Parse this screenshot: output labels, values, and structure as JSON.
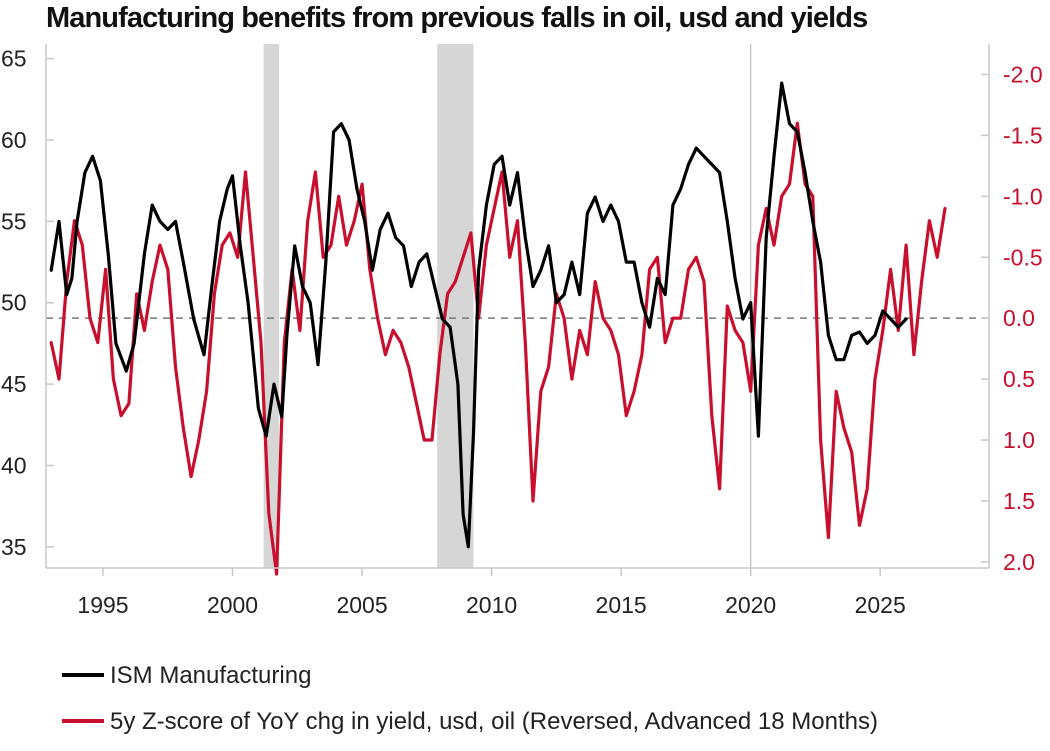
{
  "chart_data": {
    "type": "line",
    "title": "Manufacturing benefits from previous falls in oil, usd and yields",
    "x_range": [
      1992.8,
      2029.2
    ],
    "x_ticks": [
      1995,
      2000,
      2005,
      2010,
      2015,
      2020,
      2025
    ],
    "y_left": {
      "ylim": [
        33.7,
        65.9
      ],
      "ticks": [
        65,
        60,
        55,
        50,
        45,
        40,
        35
      ]
    },
    "y_right": {
      "ylim": [
        -2.25,
        2.05
      ],
      "reversed": true,
      "ticks": [
        -2.0,
        -1.5,
        -1.0,
        -0.5,
        0.0,
        0.5,
        1.0,
        1.5,
        2.0
      ],
      "tick_labels": [
        "-2.0",
        "-1.5",
        "-1.0",
        "-0.5",
        "0.0",
        "0.5",
        "1.0",
        "1.5",
        "2.0"
      ]
    },
    "reference_line": {
      "axis": "y_right",
      "value": 0.0,
      "style": "dashed"
    },
    "recessions": [
      [
        2001.2,
        2001.8
      ],
      [
        2007.9,
        2009.3
      ]
    ],
    "vertical_markers": [
      2020.0
    ],
    "series": [
      {
        "name": "ISM Manufacturing",
        "axis": "left",
        "color": "#000000",
        "x": [
          1993.0,
          1993.3,
          1993.6,
          1993.8,
          1994.0,
          1994.3,
          1994.6,
          1994.9,
          1995.2,
          1995.5,
          1995.9,
          1996.2,
          1996.6,
          1996.9,
          1997.2,
          1997.5,
          1997.8,
          1998.1,
          1998.5,
          1998.9,
          1999.2,
          1999.5,
          1999.8,
          2000.0,
          2000.3,
          2000.6,
          2001.0,
          2001.3,
          2001.6,
          2001.9,
          2002.1,
          2002.4,
          2002.7,
          2003.0,
          2003.3,
          2003.6,
          2003.9,
          2004.2,
          2004.5,
          2004.8,
          2005.1,
          2005.4,
          2005.7,
          2006.0,
          2006.3,
          2006.6,
          2006.9,
          2007.2,
          2007.5,
          2007.8,
          2008.1,
          2008.4,
          2008.7,
          2008.9,
          2009.1,
          2009.3,
          2009.5,
          2009.8,
          2010.1,
          2010.4,
          2010.7,
          2011.0,
          2011.3,
          2011.6,
          2011.9,
          2012.2,
          2012.5,
          2012.8,
          2013.1,
          2013.4,
          2013.7,
          2014.0,
          2014.3,
          2014.6,
          2014.9,
          2015.2,
          2015.5,
          2015.8,
          2016.1,
          2016.4,
          2016.7,
          2017.0,
          2017.3,
          2017.6,
          2017.9,
          2018.2,
          2018.5,
          2018.8,
          2019.1,
          2019.4,
          2019.7,
          2020.0,
          2020.3,
          2020.6,
          2020.9,
          2021.2,
          2021.5,
          2021.8,
          2022.1,
          2022.4,
          2022.7,
          2023.0,
          2023.3,
          2023.6,
          2023.9,
          2024.2,
          2024.5,
          2024.8,
          2025.1,
          2025.4,
          2025.7,
          2026.0
        ],
        "values": [
          52.0,
          55.0,
          50.5,
          51.5,
          55.0,
          58.0,
          59.0,
          57.5,
          53.0,
          47.5,
          45.8,
          47.5,
          53.0,
          56.0,
          55.0,
          54.5,
          55.0,
          52.5,
          49.0,
          46.8,
          51.0,
          55.0,
          57.0,
          57.8,
          53.5,
          50.0,
          43.5,
          41.8,
          45.0,
          43.0,
          48.0,
          53.5,
          51.0,
          50.0,
          46.2,
          52.5,
          60.5,
          61.0,
          60.0,
          57.0,
          55.0,
          52.0,
          54.5,
          55.5,
          54.0,
          53.5,
          51.0,
          52.5,
          53.0,
          51.0,
          49.0,
          48.5,
          45.0,
          37.0,
          35.0,
          42.0,
          52.0,
          56.0,
          58.5,
          59.0,
          56.0,
          58.0,
          54.0,
          51.0,
          52.0,
          53.5,
          50.0,
          50.5,
          52.5,
          50.5,
          55.5,
          56.5,
          55.0,
          56.0,
          55.0,
          52.5,
          52.5,
          50.0,
          48.5,
          51.5,
          50.5,
          56.0,
          57.0,
          58.5,
          59.5,
          59.0,
          58.5,
          58.0,
          55.0,
          51.5,
          49.0,
          50.0,
          41.8,
          54.0,
          59.0,
          63.5,
          61.0,
          60.5,
          58.0,
          55.0,
          52.5,
          48.0,
          46.5,
          46.5,
          48.0,
          48.2,
          47.5,
          48.0,
          49.5,
          49.0,
          48.5,
          49.0
        ]
      },
      {
        "name": "5y Z-score of YoY chg in yield, usd, oil (Reversed, Advanced 18 Months)",
        "axis": "right",
        "color": "#c8102e",
        "x": [
          1993.0,
          1993.3,
          1993.6,
          1993.9,
          1994.2,
          1994.5,
          1994.8,
          1995.1,
          1995.4,
          1995.7,
          1996.0,
          1996.3,
          1996.6,
          1996.9,
          1997.2,
          1997.5,
          1997.8,
          1998.1,
          1998.4,
          1998.7,
          1999.0,
          1999.3,
          1999.6,
          1999.9,
          2000.2,
          2000.5,
          2000.8,
          2001.1,
          2001.4,
          2001.7,
          2002.0,
          2002.3,
          2002.6,
          2002.9,
          2003.2,
          2003.5,
          2003.8,
          2004.1,
          2004.4,
          2004.7,
          2005.0,
          2005.3,
          2005.6,
          2005.9,
          2006.2,
          2006.5,
          2006.8,
          2007.1,
          2007.4,
          2007.7,
          2008.0,
          2008.3,
          2008.6,
          2008.9,
          2009.2,
          2009.5,
          2009.8,
          2010.1,
          2010.4,
          2010.7,
          2011.0,
          2011.3,
          2011.6,
          2011.9,
          2012.2,
          2012.5,
          2012.8,
          2013.1,
          2013.4,
          2013.7,
          2014.0,
          2014.3,
          2014.6,
          2014.9,
          2015.2,
          2015.5,
          2015.8,
          2016.1,
          2016.4,
          2016.7,
          2017.0,
          2017.3,
          2017.6,
          2017.9,
          2018.2,
          2018.5,
          2018.8,
          2019.1,
          2019.4,
          2019.7,
          2020.0,
          2020.3,
          2020.6,
          2020.9,
          2021.2,
          2021.5,
          2021.8,
          2022.1,
          2022.4,
          2022.7,
          2023.0,
          2023.3,
          2023.6,
          2023.9,
          2024.2,
          2024.5,
          2024.8,
          2025.1,
          2025.4,
          2025.7,
          2026.0,
          2026.3,
          2026.6,
          2026.9,
          2027.2,
          2027.5
        ],
        "values": [
          0.2,
          0.5,
          -0.3,
          -0.8,
          -0.6,
          0.0,
          0.2,
          -0.4,
          0.5,
          0.8,
          0.7,
          -0.2,
          0.1,
          -0.3,
          -0.6,
          -0.4,
          0.4,
          0.9,
          1.3,
          1.0,
          0.6,
          -0.2,
          -0.6,
          -0.7,
          -0.5,
          -1.2,
          -0.5,
          0.2,
          1.6,
          2.1,
          0.2,
          -0.4,
          0.1,
          -0.8,
          -1.2,
          -0.5,
          -0.6,
          -1.0,
          -0.6,
          -0.8,
          -1.1,
          -0.4,
          0.0,
          0.3,
          0.1,
          0.2,
          0.4,
          0.7,
          1.0,
          1.0,
          0.3,
          -0.2,
          -0.3,
          -0.5,
          -0.7,
          0.0,
          -0.6,
          -0.9,
          -1.2,
          -0.5,
          -0.8,
          0.2,
          1.5,
          0.6,
          0.4,
          -0.2,
          0.0,
          0.5,
          0.1,
          0.3,
          -0.3,
          0.0,
          0.1,
          0.3,
          0.8,
          0.6,
          0.3,
          -0.4,
          -0.5,
          0.2,
          0.0,
          0.0,
          -0.4,
          -0.5,
          -0.3,
          0.8,
          1.4,
          -0.1,
          0.1,
          0.2,
          0.6,
          -0.6,
          -0.9,
          -0.6,
          -1.0,
          -1.1,
          -1.6,
          -1.1,
          -1.0,
          1.0,
          1.8,
          0.6,
          0.9,
          1.1,
          1.7,
          1.4,
          0.5,
          0.1,
          -0.4,
          0.1,
          -0.6,
          0.3,
          -0.3,
          -0.8,
          -0.5,
          -0.9
        ]
      }
    ],
    "legend": {
      "position": "bottom-left",
      "entries": [
        "ISM Manufacturing",
        "5y Z-score of YoY chg in yield, usd, oil (Reversed, Advanced 18 Months)"
      ]
    },
    "colors": {
      "ism": "#000000",
      "zscore": "#c8102e",
      "recession": "#d6d6d6",
      "axis": "#c8c8c8",
      "right_ticks": "#c8102e"
    }
  }
}
